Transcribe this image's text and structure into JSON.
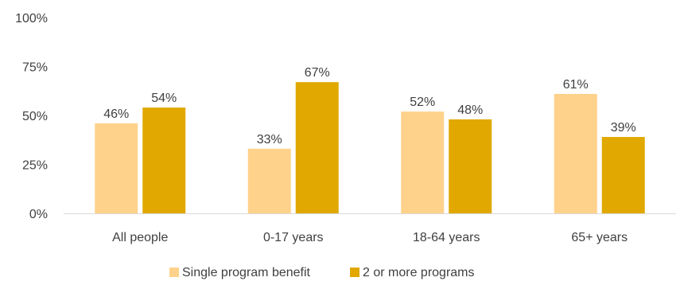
{
  "chart_data": {
    "type": "bar",
    "title": "",
    "xlabel": "",
    "ylabel": "",
    "categories": [
      "All people",
      "0-17 years",
      "18-64 years",
      "65+ years"
    ],
    "series": [
      {
        "name": "Single program benefit",
        "values": [
          46,
          33,
          52,
          61
        ],
        "labels": [
          "46%",
          "33%",
          "52%",
          "61%"
        ],
        "color": "#FFD28C"
      },
      {
        "name": "2 or more programs",
        "values": [
          54,
          67,
          48,
          39
        ],
        "labels": [
          "54%",
          "67%",
          "48%",
          "39%"
        ],
        "color": "#E0A800"
      }
    ],
    "ylim": [
      0,
      100
    ],
    "yticks": [
      0,
      25,
      50,
      75,
      100
    ],
    "ytick_labels": [
      "0%",
      "25%",
      "50%",
      "75%",
      "100%"
    ],
    "grid": false,
    "legend_position": "bottom",
    "axis_color": "#D9D9D9",
    "text_color": "#404040"
  }
}
